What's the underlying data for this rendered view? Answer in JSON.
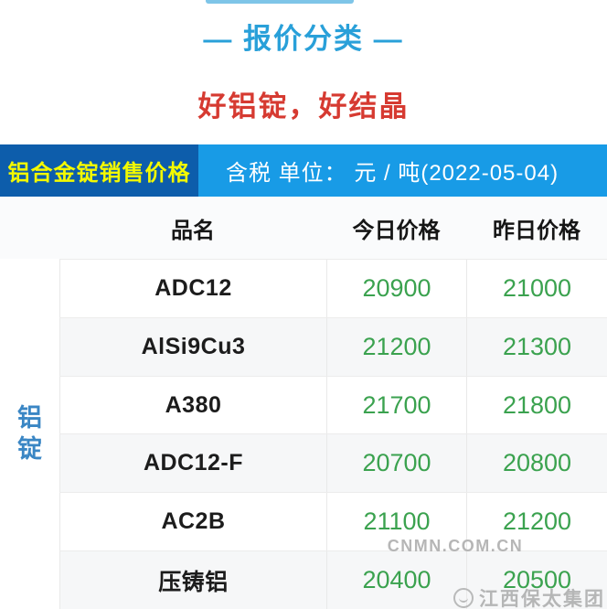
{
  "hero": {
    "title": "— 报价分类 —",
    "subtitle": "好铝锭，好结晶",
    "title_color": "#29a0d9",
    "subtitle_color": "#d63a31"
  },
  "banner": {
    "left_label": "铝合金锭销售价格",
    "right_label": "含税 单位： 元 / 吨(2022-05-04)",
    "date": "2022-05-04",
    "unit": "元 / 吨",
    "left_bg": "#0d5dab",
    "left_text_color": "#f3f900",
    "right_bg": "#189be6",
    "right_text_color": "#ffffff"
  },
  "table": {
    "group_label": "铝锭",
    "columns": {
      "name": "品名",
      "today": "今日价格",
      "yesterday": "昨日价格"
    },
    "price_color": "#3ba24f",
    "rows": [
      {
        "name": "ADC12",
        "today": "20900",
        "yesterday": "21000"
      },
      {
        "name": "AlSi9Cu3",
        "today": "21200",
        "yesterday": "21300"
      },
      {
        "name": "A380",
        "today": "21700",
        "yesterday": "21800"
      },
      {
        "name": "ADC12-F",
        "today": "20700",
        "yesterday": "20800"
      },
      {
        "name": "AC2B",
        "today": "21100",
        "yesterday": "21200"
      },
      {
        "name": "压铸铝",
        "today": "20400",
        "yesterday": "20500"
      }
    ]
  },
  "watermarks": {
    "center": "CNMN.COM.CN",
    "bottom_right": "江西保太集团"
  }
}
